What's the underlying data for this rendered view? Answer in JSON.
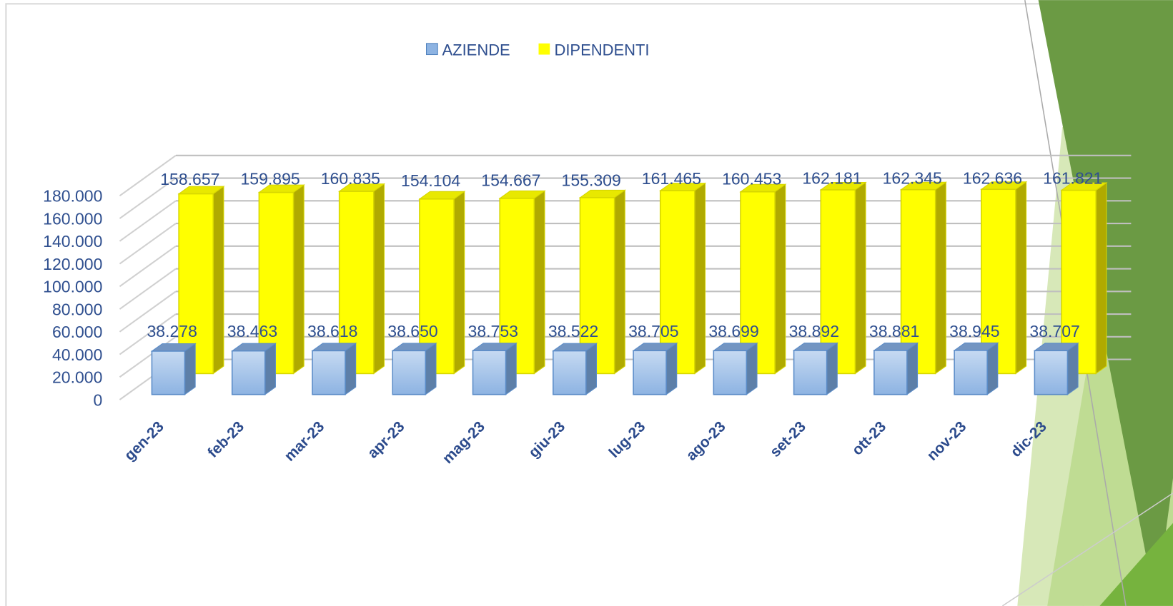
{
  "chart_data": {
    "type": "bar",
    "categories": [
      "gen-23",
      "feb-23",
      "mar-23",
      "apr-23",
      "mag-23",
      "giu-23",
      "lug-23",
      "ago-23",
      "set-23",
      "ott-23",
      "nov-23",
      "dic-23"
    ],
    "series": [
      {
        "name": "AZIENDE",
        "color": "#8db3e2",
        "values": [
          38278,
          38463,
          38618,
          38650,
          38753,
          38522,
          38705,
          38699,
          38892,
          38881,
          38945,
          38707
        ],
        "value_labels": [
          "38.278",
          "38.463",
          "38.618",
          "38.650",
          "38.753",
          "38.522",
          "38.705",
          "38.699",
          "38.892",
          "38.881",
          "38.945",
          "38.707"
        ]
      },
      {
        "name": "DIPENDENTI",
        "color": "#ffff00",
        "values": [
          158657,
          159895,
          160835,
          154104,
          154667,
          155309,
          161465,
          160453,
          162181,
          162345,
          162636,
          161821
        ],
        "value_labels": [
          "158.657",
          "159.895",
          "160.835",
          "154.104",
          "154.667",
          "155.309",
          "161.465",
          "160.453",
          "162.181",
          "162.345",
          "162.636",
          "161.821"
        ]
      }
    ],
    "ylim": [
      0,
      180000
    ],
    "yticks": [
      0,
      {
        "value": 20000,
        "label": "20.000"
      },
      {
        "value": 40000,
        "label": "40.000"
      },
      {
        "value": 60000,
        "label": "60.000"
      },
      {
        "value": 80000,
        "label": "80.000"
      },
      {
        "value": 100000,
        "label": "100.000"
      },
      {
        "value": 120000,
        "label": "120.000"
      },
      {
        "value": 140000,
        "label": "140.000"
      },
      {
        "value": 160000,
        "label": "160.000"
      },
      {
        "value": 180000,
        "label": "180.000"
      }
    ],
    "grid": true,
    "legend": "top"
  }
}
